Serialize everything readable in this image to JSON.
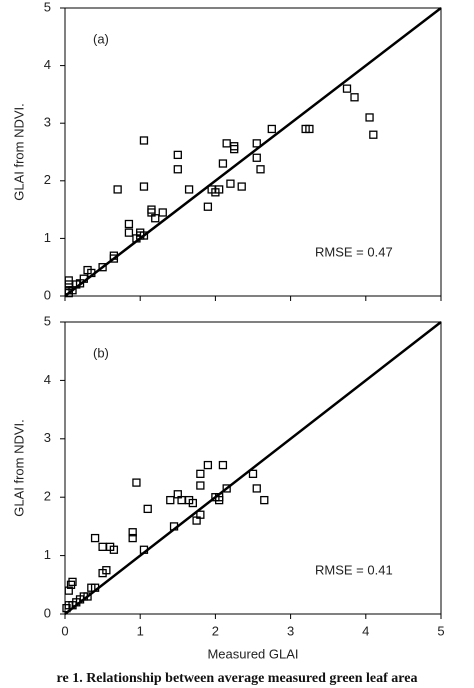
{
  "chart_data": [
    {
      "type": "scatter",
      "annotations": [
        "(a)",
        "RMSE = 0.47"
      ],
      "ylabel": "GLAI from NDVI.",
      "color": "#000000",
      "marker": "square",
      "x": [
        0.05,
        0.05,
        0.05,
        0.05,
        0.1,
        0.15,
        0.2,
        0.25,
        0.3,
        0.35,
        0.5,
        0.65,
        0.65,
        0.7,
        0.85,
        0.85,
        0.95,
        1.0,
        1.0,
        1.05,
        1.05,
        1.05,
        1.15,
        1.15,
        1.2,
        1.3,
        1.5,
        1.5,
        1.65,
        1.9,
        1.95,
        2.0,
        2.05,
        2.1,
        2.15,
        2.2,
        2.25,
        2.25,
        2.35,
        2.55,
        2.55,
        2.6,
        2.75,
        3.2,
        3.25,
        3.75,
        3.85,
        4.05,
        4.1
      ],
      "values": [
        0.05,
        0.1,
        0.2,
        0.27,
        0.1,
        0.2,
        0.22,
        0.3,
        0.45,
        0.4,
        0.5,
        0.7,
        0.65,
        1.85,
        1.25,
        1.1,
        1.0,
        1.05,
        1.1,
        1.05,
        1.9,
        2.7,
        1.45,
        1.5,
        1.35,
        1.45,
        2.45,
        2.2,
        1.85,
        1.55,
        1.85,
        1.8,
        1.85,
        2.3,
        2.65,
        1.95,
        2.55,
        2.6,
        1.9,
        2.65,
        2.4,
        2.2,
        2.9,
        2.9,
        2.9,
        3.6,
        3.45,
        3.1,
        2.8
      ],
      "reference_line": {
        "x": [
          0,
          5
        ],
        "y": [
          0,
          5
        ]
      },
      "xlim": [
        0,
        5
      ],
      "ylim": [
        0,
        5
      ],
      "xticks": [
        0,
        1,
        2,
        3,
        4,
        5
      ],
      "yticks": [
        0,
        1,
        2,
        3,
        4,
        5
      ],
      "xtick_labels": false
    },
    {
      "type": "scatter",
      "annotations": [
        "(b)",
        "RMSE = 0.41"
      ],
      "ylabel": "GLAI from NDVI.",
      "xlabel": "Measured GLAI",
      "color": "#000000",
      "marker": "square",
      "x": [
        0.02,
        0.05,
        0.05,
        0.08,
        0.1,
        0.1,
        0.15,
        0.2,
        0.25,
        0.3,
        0.35,
        0.4,
        0.4,
        0.5,
        0.5,
        0.55,
        0.6,
        0.65,
        0.9,
        0.9,
        0.95,
        1.05,
        1.1,
        1.4,
        1.45,
        1.5,
        1.55,
        1.65,
        1.7,
        1.75,
        1.8,
        1.8,
        1.8,
        1.9,
        2.0,
        2.05,
        2.05,
        2.1,
        2.15,
        2.5,
        2.55,
        2.65
      ],
      "values": [
        0.1,
        0.15,
        0.4,
        0.5,
        0.55,
        0.15,
        0.2,
        0.25,
        0.3,
        0.3,
        0.45,
        0.45,
        1.3,
        0.7,
        1.15,
        0.75,
        1.15,
        1.1,
        1.3,
        1.4,
        2.25,
        1.1,
        1.8,
        1.95,
        1.5,
        2.05,
        1.95,
        1.95,
        1.9,
        1.6,
        1.7,
        2.2,
        2.4,
        2.55,
        2.0,
        2.0,
        1.95,
        2.55,
        2.15,
        2.4,
        2.15,
        1.95
      ],
      "reference_line": {
        "x": [
          0,
          5
        ],
        "y": [
          0,
          5
        ]
      },
      "xlim": [
        0,
        5
      ],
      "ylim": [
        0,
        5
      ],
      "xticks": [
        0,
        1,
        2,
        3,
        4,
        5
      ],
      "yticks": [
        0,
        1,
        2,
        3,
        4,
        5
      ],
      "xtick_labels": true
    }
  ],
  "caption": "re 1. Relationship between average measured green leaf area"
}
